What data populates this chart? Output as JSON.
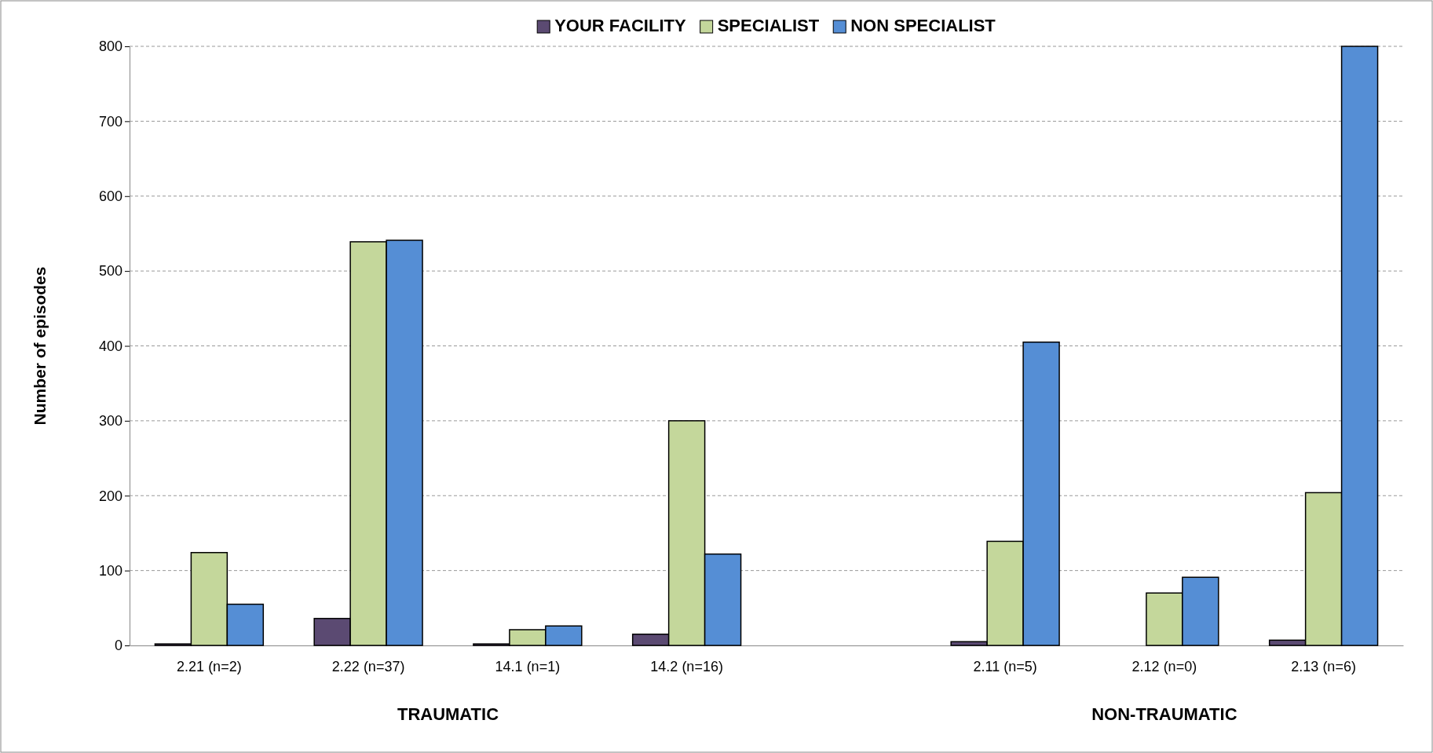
{
  "chart_data": {
    "type": "bar",
    "categories": [
      "2.21 (n=2)",
      "2.22 (n=37)",
      "14.1 (n=1)",
      "14.2 (n=16)",
      null,
      "2.11 (n=5)",
      "2.12 (n=0)",
      "2.13 (n=6)"
    ],
    "series": [
      {
        "name": "YOUR FACILITY",
        "color": "#5b4a72",
        "values": [
          2,
          36,
          2,
          15,
          null,
          5,
          0,
          7
        ]
      },
      {
        "name": "SPECIALIST",
        "color": "#c4d79b",
        "values": [
          124,
          539,
          21,
          300,
          null,
          139,
          70,
          204
        ]
      },
      {
        "name": "NON SPECIALIST",
        "color": "#558ed5",
        "values": [
          55,
          541,
          26,
          122,
          null,
          405,
          91,
          800
        ]
      }
    ],
    "ylabel": "Number of episodes",
    "ylim": [
      0,
      800
    ],
    "yticks": [
      0,
      100,
      200,
      300,
      400,
      500,
      600,
      700,
      800
    ],
    "grid": "y",
    "legend": "top",
    "annotations": [
      "TRAUMATIC",
      "NON-TRAUMATIC"
    ]
  }
}
